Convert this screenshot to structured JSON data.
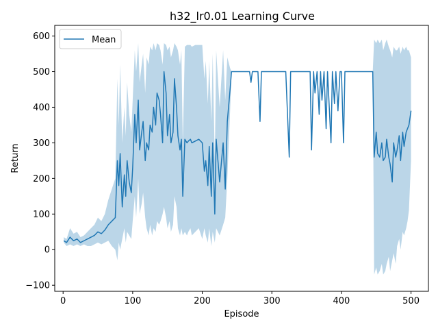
{
  "chart_data": {
    "type": "line",
    "title": "h32_lr0.01 Learning Curve",
    "xlabel": "Episode",
    "ylabel": "Return",
    "xlim": [
      -12,
      525
    ],
    "ylim": [
      -117,
      630
    ],
    "xticks": [
      0,
      100,
      200,
      300,
      400,
      500
    ],
    "yticks": [
      -100,
      0,
      100,
      200,
      300,
      400,
      500,
      600
    ],
    "grid": false,
    "legend_position": "upper-left",
    "series": [
      {
        "name": "Mean",
        "color": "#1f77b4",
        "band_color": "#1f77b4",
        "band_opacity": 0.3,
        "x": [
          1,
          5,
          10,
          15,
          20,
          25,
          30,
          35,
          40,
          45,
          50,
          55,
          60,
          65,
          70,
          75,
          78,
          80,
          82,
          85,
          88,
          90,
          92,
          95,
          98,
          100,
          103,
          105,
          108,
          110,
          113,
          115,
          118,
          120,
          123,
          125,
          128,
          130,
          133,
          135,
          138,
          140,
          143,
          145,
          148,
          150,
          153,
          155,
          158,
          160,
          163,
          165,
          168,
          170,
          172,
          175,
          178,
          180,
          183,
          185,
          190,
          195,
          200,
          203,
          205,
          208,
          210,
          213,
          215,
          218,
          220,
          225,
          230,
          233,
          236,
          240,
          242,
          245,
          250,
          260,
          268,
          270,
          272,
          275,
          280,
          283,
          285,
          290,
          300,
          310,
          320,
          325,
          327,
          330,
          340,
          350,
          355,
          357,
          360,
          362,
          365,
          368,
          370,
          372,
          375,
          378,
          380,
          382,
          385,
          387,
          390,
          392,
          395,
          398,
          400,
          403,
          405,
          410,
          420,
          430,
          440,
          445,
          447,
          450,
          452,
          455,
          458,
          460,
          463,
          465,
          468,
          470,
          473,
          475,
          478,
          480,
          483,
          485,
          488,
          490,
          493,
          495,
          497,
          500
        ],
        "y": [
          25,
          20,
          35,
          25,
          30,
          20,
          25,
          30,
          35,
          40,
          50,
          45,
          55,
          70,
          80,
          90,
          250,
          180,
          270,
          120,
          210,
          150,
          250,
          190,
          160,
          230,
          380,
          300,
          420,
          280,
          330,
          360,
          250,
          300,
          280,
          350,
          330,
          400,
          350,
          440,
          420,
          380,
          300,
          500,
          440,
          320,
          380,
          300,
          330,
          480,
          400,
          320,
          280,
          310,
          150,
          310,
          300,
          305,
          310,
          300,
          305,
          310,
          300,
          220,
          250,
          180,
          290,
          150,
          300,
          100,
          310,
          190,
          300,
          170,
          360,
          450,
          500,
          500,
          500,
          500,
          500,
          470,
          500,
          500,
          500,
          360,
          500,
          500,
          500,
          500,
          500,
          260,
          500,
          500,
          500,
          500,
          500,
          280,
          500,
          440,
          500,
          380,
          500,
          420,
          500,
          340,
          500,
          420,
          300,
          500,
          410,
          500,
          390,
          500,
          500,
          300,
          500,
          500,
          500,
          500,
          500,
          500,
          260,
          330,
          270,
          260,
          300,
          250,
          260,
          310,
          260,
          240,
          190,
          300,
          260,
          280,
          320,
          250,
          330,
          290,
          330,
          340,
          350,
          390
        ],
        "lower": [
          20,
          10,
          15,
          10,
          15,
          10,
          15,
          10,
          10,
          15,
          20,
          15,
          20,
          25,
          10,
          0,
          -30,
          20,
          0,
          30,
          60,
          20,
          50,
          40,
          30,
          80,
          150,
          90,
          200,
          100,
          130,
          160,
          90,
          60,
          40,
          70,
          40,
          60,
          50,
          80,
          70,
          80,
          100,
          120,
          90,
          60,
          80,
          50,
          70,
          150,
          120,
          60,
          40,
          60,
          40,
          50,
          40,
          50,
          60,
          40,
          50,
          60,
          30,
          60,
          40,
          20,
          60,
          10,
          50,
          20,
          60,
          40,
          70,
          90,
          200,
          390,
          500,
          500,
          500,
          500,
          500,
          470,
          500,
          500,
          500,
          360,
          500,
          500,
          500,
          500,
          500,
          260,
          500,
          500,
          500,
          500,
          500,
          280,
          500,
          440,
          500,
          380,
          500,
          420,
          500,
          340,
          500,
          420,
          300,
          500,
          410,
          500,
          390,
          500,
          500,
          300,
          500,
          500,
          500,
          500,
          500,
          500,
          -70,
          -50,
          -70,
          -60,
          -40,
          -70,
          -60,
          -40,
          -20,
          -60,
          -30,
          -10,
          -40,
          10,
          30,
          0,
          50,
          40,
          60,
          80,
          110,
          250
        ],
        "upper": [
          35,
          30,
          60,
          45,
          50,
          35,
          40,
          50,
          60,
          70,
          90,
          80,
          100,
          140,
          170,
          200,
          480,
          350,
          520,
          300,
          400,
          320,
          470,
          380,
          330,
          420,
          560,
          500,
          580,
          470,
          520,
          550,
          440,
          540,
          520,
          570,
          560,
          580,
          560,
          580,
          575,
          560,
          520,
          580,
          575,
          560,
          570,
          540,
          560,
          580,
          570,
          560,
          520,
          560,
          300,
          570,
          575,
          575,
          575,
          570,
          575,
          575,
          575,
          480,
          530,
          410,
          530,
          360,
          550,
          250,
          560,
          400,
          560,
          420,
          540,
          510,
          500,
          500,
          500,
          500,
          500,
          470,
          500,
          500,
          500,
          360,
          500,
          500,
          500,
          500,
          500,
          260,
          500,
          500,
          500,
          500,
          500,
          280,
          500,
          440,
          500,
          380,
          500,
          420,
          500,
          340,
          500,
          420,
          300,
          500,
          410,
          500,
          390,
          500,
          500,
          300,
          500,
          500,
          500,
          500,
          500,
          500,
          590,
          580,
          590,
          580,
          590,
          560,
          580,
          590,
          570,
          560,
          540,
          570,
          560,
          560,
          570,
          550,
          570,
          560,
          570,
          560,
          560,
          540
        ]
      }
    ]
  }
}
